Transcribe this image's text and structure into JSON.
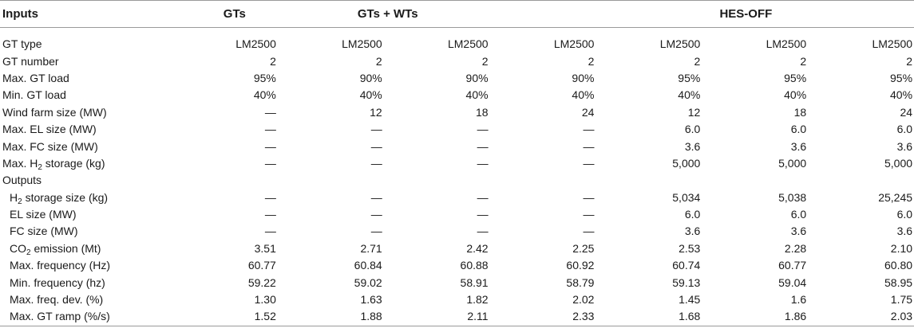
{
  "header": {
    "inputs": "Inputs",
    "gts": "GTs",
    "gts_wts": "GTs + WTs",
    "hes_off": "HES-OFF"
  },
  "rows": [
    {
      "label": "GT type",
      "values": [
        "LM2500",
        "LM2500",
        "LM2500",
        "LM2500",
        "LM2500",
        "LM2500",
        "LM2500"
      ]
    },
    {
      "label": "GT number",
      "values": [
        "2",
        "2",
        "2",
        "2",
        "2",
        "2",
        "2"
      ]
    },
    {
      "label": "Max. GT load",
      "values": [
        "95%",
        "90%",
        "90%",
        "90%",
        "95%",
        "95%",
        "95%"
      ]
    },
    {
      "label": "Min. GT load",
      "values": [
        "40%",
        "40%",
        "40%",
        "40%",
        "40%",
        "40%",
        "40%"
      ]
    },
    {
      "label": "Wind farm size (MW)",
      "values": [
        "—",
        "12",
        "18",
        "24",
        "12",
        "18",
        "24"
      ]
    },
    {
      "label": "Max. EL size (MW)",
      "values": [
        "—",
        "—",
        "—",
        "—",
        "6.0",
        "6.0",
        "6.0"
      ]
    },
    {
      "label": "Max. FC size (MW)",
      "values": [
        "—",
        "—",
        "—",
        "—",
        "3.6",
        "3.6",
        "3.6"
      ]
    },
    {
      "label_pre": "Max. H",
      "label_sub": "2",
      "label_post": " storage (kg)",
      "values": [
        "—",
        "—",
        "—",
        "—",
        "5,000",
        "5,000",
        "5,000"
      ]
    },
    {
      "label": "Outputs",
      "values": [
        "",
        "",
        "",
        "",
        "",
        "",
        ""
      ]
    },
    {
      "label_pre": "H",
      "label_sub": "2",
      "label_post": " storage size (kg)",
      "sub_indent": true,
      "values": [
        "—",
        "—",
        "—",
        "—",
        "5,034",
        "5,038",
        "25,245"
      ]
    },
    {
      "label": "EL size (MW)",
      "sub_indent": true,
      "values": [
        "—",
        "—",
        "—",
        "—",
        "6.0",
        "6.0",
        "6.0"
      ]
    },
    {
      "label": "FC size (MW)",
      "sub_indent": true,
      "values": [
        "—",
        "—",
        "—",
        "—",
        "3.6",
        "3.6",
        "3.6"
      ]
    },
    {
      "label_pre": "CO",
      "label_sub": "2",
      "label_post": " emission (Mt)",
      "sub_indent": true,
      "values": [
        "3.51",
        "2.71",
        "2.42",
        "2.25",
        "2.53",
        "2.28",
        "2.10"
      ]
    },
    {
      "label": "Max. frequency (Hz)",
      "sub_indent": true,
      "values": [
        "60.77",
        "60.84",
        "60.88",
        "60.92",
        "60.74",
        "60.77",
        "60.80"
      ]
    },
    {
      "label": "Min. frequency (hz)",
      "sub_indent": true,
      "values": [
        "59.22",
        "59.02",
        "58.91",
        "58.79",
        "59.13",
        "59.04",
        "58.95"
      ]
    },
    {
      "label": "Max. freq. dev. (%)",
      "sub_indent": true,
      "values": [
        "1.30",
        "1.63",
        "1.82",
        "2.02",
        "1.45",
        "1.6",
        "1.75"
      ]
    },
    {
      "label": "Max. GT ramp (%/s)",
      "sub_indent": true,
      "values": [
        "1.52",
        "1.88",
        "2.11",
        "2.33",
        "1.68",
        "1.86",
        "2.03"
      ]
    }
  ]
}
